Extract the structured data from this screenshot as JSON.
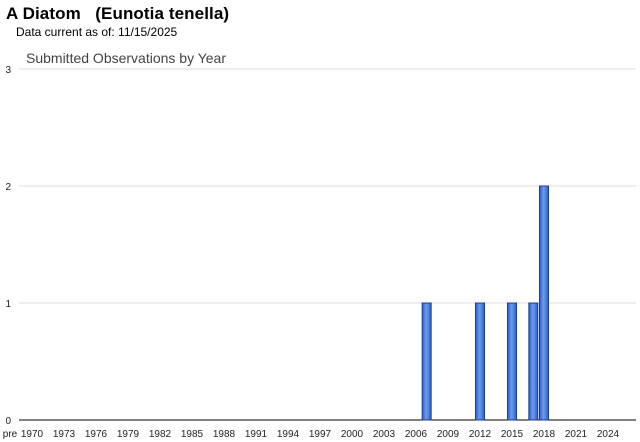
{
  "header": {
    "title": "A Diatom   (Eunotia tenella)",
    "data_current": "Data current as of: 11/15/2025"
  },
  "chart_data": {
    "type": "bar",
    "title": "Submitted Observations by Year",
    "xlabel": "",
    "ylabel": "",
    "ylim": [
      0,
      3
    ],
    "yticks": [
      0,
      1,
      2,
      3
    ],
    "grid": true,
    "x_tick_labels": [
      "pre",
      "1970",
      "1973",
      "1976",
      "1979",
      "1982",
      "1985",
      "1988",
      "1991",
      "1994",
      "1997",
      "2000",
      "2003",
      "2006",
      "2009",
      "2012",
      "2015",
      "2018",
      "2021",
      "2024"
    ],
    "categories": [
      "pre",
      "1970",
      "1971",
      "1972",
      "1973",
      "1974",
      "1975",
      "1976",
      "1977",
      "1978",
      "1979",
      "1980",
      "1981",
      "1982",
      "1983",
      "1984",
      "1985",
      "1986",
      "1987",
      "1988",
      "1989",
      "1990",
      "1991",
      "1992",
      "1993",
      "1994",
      "1995",
      "1996",
      "1997",
      "1998",
      "1999",
      "2000",
      "2001",
      "2002",
      "2003",
      "2004",
      "2005",
      "2006",
      "2007",
      "2008",
      "2009",
      "2010",
      "2011",
      "2012",
      "2013",
      "2014",
      "2015",
      "2016",
      "2017",
      "2018",
      "2019",
      "2020",
      "2021",
      "2022",
      "2023",
      "2024",
      "2025"
    ],
    "values": [
      0,
      0,
      0,
      0,
      0,
      0,
      0,
      0,
      0,
      0,
      0,
      0,
      0,
      0,
      0,
      0,
      0,
      0,
      0,
      0,
      0,
      0,
      0,
      0,
      0,
      0,
      0,
      0,
      0,
      0,
      0,
      0,
      0,
      0,
      0,
      0,
      0,
      0,
      1,
      0,
      0,
      0,
      0,
      1,
      0,
      0,
      1,
      0,
      1,
      2,
      0,
      0,
      0,
      0,
      0,
      0,
      0
    ],
    "colors": {
      "bar_fill": "#4a7fe0",
      "bar_stroke": "#1a3f8f",
      "grid": "#dddddd",
      "axis": "#000000"
    }
  }
}
